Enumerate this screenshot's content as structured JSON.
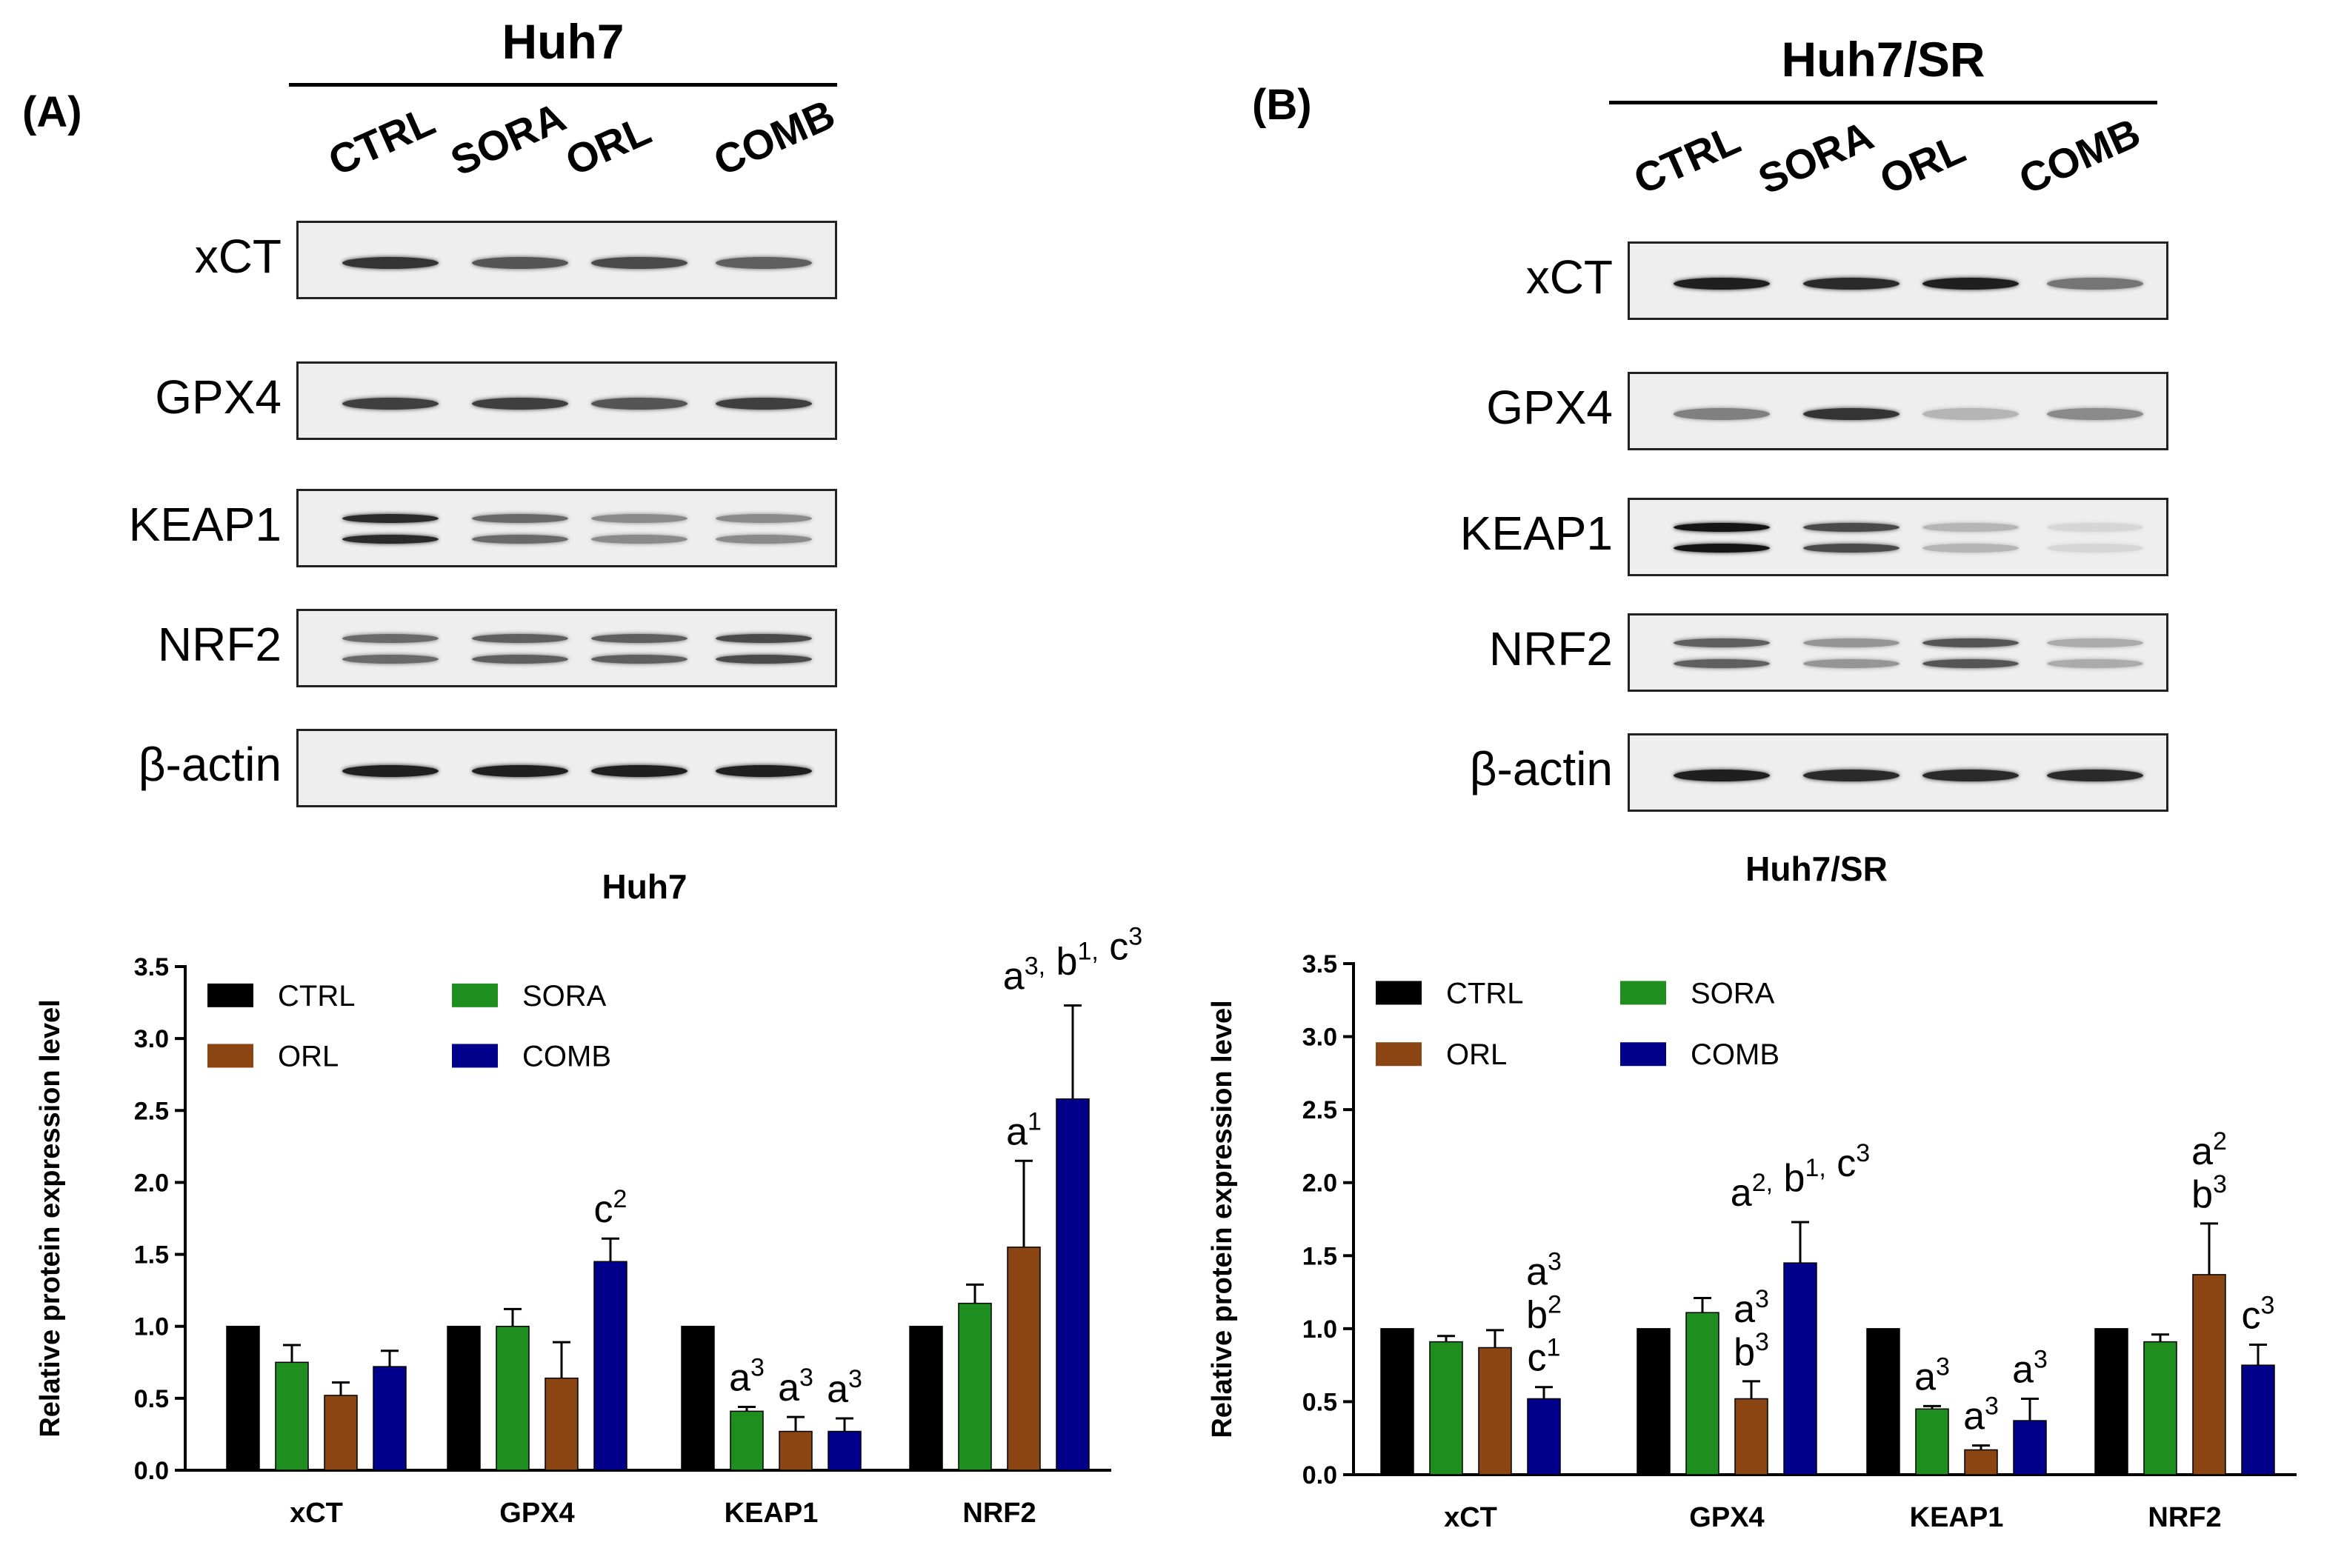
{
  "panels": [
    {
      "label": "(A)",
      "cell_line": "Huh7",
      "lanes": [
        "CTRL",
        "SORA",
        "ORL",
        "COMB"
      ],
      "proteins": [
        "xCT",
        "GPX4",
        "KEAP1",
        "NRF2",
        "β-actin"
      ],
      "band_intensity": {
        "xCT": [
          0.85,
          0.7,
          0.75,
          0.65
        ],
        "GPX4": [
          0.8,
          0.8,
          0.7,
          0.8
        ],
        "KEAP1": [
          0.9,
          0.6,
          0.45,
          0.45
        ],
        "NRF2": [
          0.6,
          0.65,
          0.65,
          0.75
        ],
        "β-actin": [
          0.95,
          0.95,
          0.95,
          0.95
        ]
      }
    },
    {
      "label": "(B)",
      "cell_line": "Huh7/SR",
      "lanes": [
        "CTRL",
        "SORA",
        "ORL",
        "COMB"
      ],
      "proteins": [
        "xCT",
        "GPX4",
        "KEAP1",
        "NRF2",
        "β-actin"
      ],
      "band_intensity": {
        "xCT": [
          0.95,
          0.9,
          0.95,
          0.55
        ],
        "GPX4": [
          0.5,
          0.85,
          0.25,
          0.45
        ],
        "KEAP1": [
          1.0,
          0.75,
          0.25,
          0.1
        ],
        "NRF2": [
          0.65,
          0.4,
          0.7,
          0.3
        ],
        "β-actin": [
          0.95,
          0.9,
          0.9,
          0.9
        ]
      }
    }
  ],
  "chart_data": [
    {
      "type": "bar",
      "title": "Huh7",
      "xlabel": "",
      "ylabel": "Relative protein expression level",
      "ylim": [
        0,
        3.5
      ],
      "yticks": [
        "0.0",
        "0.5",
        "1.0",
        "1.5",
        "2.0",
        "2.5",
        "3.0",
        "3.5"
      ],
      "categories": [
        "xCT",
        "GPX4",
        "KEAP1",
        "NRF2"
      ],
      "legend_position": "top-left",
      "series": [
        {
          "name": "CTRL",
          "color": "#000000",
          "values": [
            1.0,
            1.0,
            1.0,
            1.0
          ],
          "errors": [
            0,
            0,
            0,
            0
          ]
        },
        {
          "name": "SORA",
          "color": "#1e8f1e",
          "values": [
            0.75,
            1.0,
            0.41,
            1.16
          ],
          "errors": [
            0.12,
            0.12,
            0.03,
            0.13
          ]
        },
        {
          "name": "ORL",
          "color": "#8b4513",
          "values": [
            0.52,
            0.64,
            0.27,
            1.55
          ],
          "errors": [
            0.09,
            0.25,
            0.1,
            0.6
          ]
        },
        {
          "name": "COMB",
          "color": "#00008b",
          "values": [
            0.72,
            1.45,
            0.27,
            2.58
          ],
          "errors": [
            0.11,
            0.16,
            0.09,
            0.65
          ]
        }
      ],
      "annotations": [
        {
          "category": "GPX4",
          "series": "COMB",
          "lines": [
            [
              [
                "c",
                "2"
              ]
            ]
          ]
        },
        {
          "category": "KEAP1",
          "series": "SORA",
          "lines": [
            [
              [
                "a",
                "3"
              ]
            ]
          ]
        },
        {
          "category": "KEAP1",
          "series": "ORL",
          "lines": [
            [
              [
                "a",
                "3"
              ]
            ]
          ]
        },
        {
          "category": "KEAP1",
          "series": "COMB",
          "lines": [
            [
              [
                "a",
                "3"
              ]
            ]
          ]
        },
        {
          "category": "NRF2",
          "series": "ORL",
          "lines": [
            [
              [
                "a",
                "1"
              ]
            ]
          ]
        },
        {
          "category": "NRF2",
          "series": "COMB",
          "lines": [
            [
              [
                "a",
                "3,"
              ],
              [
                "b",
                "1,"
              ],
              [
                "c",
                "3"
              ]
            ]
          ]
        }
      ]
    },
    {
      "type": "bar",
      "title": "Huh7/SR",
      "xlabel": "",
      "ylabel": "Relative protein expression level",
      "ylim": [
        0,
        3.5
      ],
      "yticks": [
        "0.0",
        "0.5",
        "1.0",
        "1.5",
        "2.0",
        "2.5",
        "3.0",
        "3.5"
      ],
      "categories": [
        "xCT",
        "GPX4",
        "KEAP1",
        "NRF2"
      ],
      "legend_position": "top-left",
      "series": [
        {
          "name": "CTRL",
          "color": "#000000",
          "values": [
            1.0,
            1.0,
            1.0,
            1.0
          ],
          "errors": [
            0,
            0,
            0,
            0
          ]
        },
        {
          "name": "SORA",
          "color": "#1e8f1e",
          "values": [
            0.91,
            1.11,
            0.45,
            0.91
          ],
          "errors": [
            0.04,
            0.1,
            0.02,
            0.05
          ]
        },
        {
          "name": "ORL",
          "color": "#8b4513",
          "values": [
            0.87,
            0.52,
            0.17,
            1.37
          ],
          "errors": [
            0.12,
            0.12,
            0.03,
            0.35
          ]
        },
        {
          "name": "COMB",
          "color": "#00008b",
          "values": [
            0.52,
            1.45,
            0.37,
            0.75
          ],
          "errors": [
            0.08,
            0.28,
            0.15,
            0.14
          ]
        }
      ],
      "annotations": [
        {
          "category": "xCT",
          "series": "COMB",
          "lines": [
            [
              [
                "a",
                "3"
              ]
            ],
            [
              [
                "b",
                "2"
              ]
            ],
            [
              [
                "c",
                "1"
              ]
            ]
          ]
        },
        {
          "category": "GPX4",
          "series": "ORL",
          "lines": [
            [
              [
                "a",
                "3"
              ]
            ],
            [
              [
                "b",
                "3"
              ]
            ]
          ]
        },
        {
          "category": "GPX4",
          "series": "COMB",
          "lines": [
            [
              [
                "a",
                "2,"
              ],
              [
                "b",
                "1,"
              ],
              [
                "c",
                "3"
              ]
            ]
          ]
        },
        {
          "category": "KEAP1",
          "series": "SORA",
          "lines": [
            [
              [
                "a",
                "3"
              ]
            ]
          ]
        },
        {
          "category": "KEAP1",
          "series": "ORL",
          "lines": [
            [
              [
                "a",
                "3"
              ]
            ]
          ]
        },
        {
          "category": "KEAP1",
          "series": "COMB",
          "lines": [
            [
              [
                "a",
                "3"
              ]
            ]
          ]
        },
        {
          "category": "NRF2",
          "series": "ORL",
          "lines": [
            [
              [
                "a",
                "2"
              ]
            ],
            [
              [
                "b",
                "3"
              ]
            ]
          ]
        },
        {
          "category": "NRF2",
          "series": "COMB",
          "lines": [
            [
              [
                "c",
                "3"
              ]
            ]
          ]
        }
      ]
    }
  ]
}
